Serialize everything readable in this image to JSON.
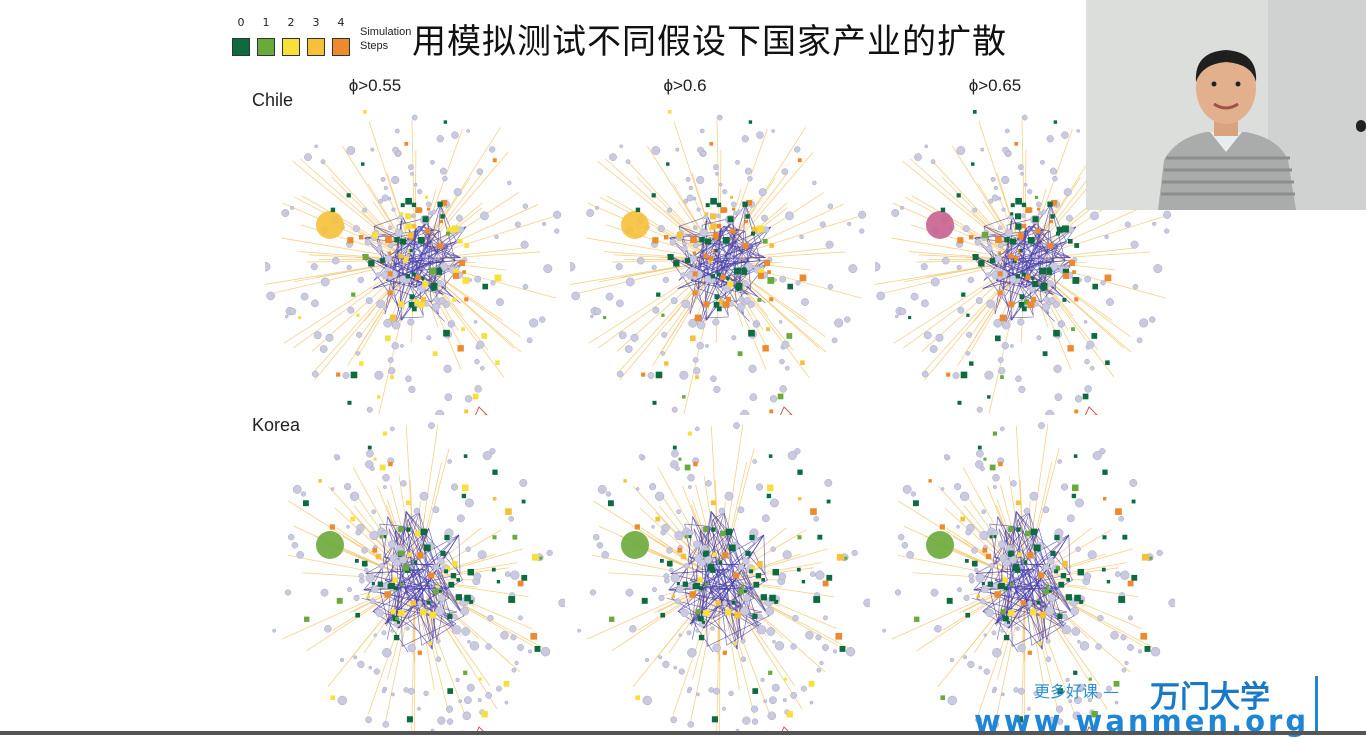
{
  "slide": {
    "title": "用模拟测试不同假设下国家产业的扩散",
    "legend": {
      "steps": [
        "0",
        "1",
        "2",
        "3",
        "4"
      ],
      "colors": [
        "#0c6b3f",
        "#6aaa3a",
        "#f7e03a",
        "#f6c13a",
        "#ee8a2e"
      ],
      "label_line1": "Simulation",
      "label_line2": "Steps"
    },
    "columns": [
      "ϕ>0.55",
      "ϕ>0.6",
      "ϕ>0.65"
    ],
    "rows": [
      "Chile",
      "Korea"
    ]
  },
  "watermark": {
    "tagline": "更多好课 —",
    "brand": "万门大学",
    "url": "www.wanmen.org"
  },
  "webcam": {
    "icon": "presenter-video"
  }
}
